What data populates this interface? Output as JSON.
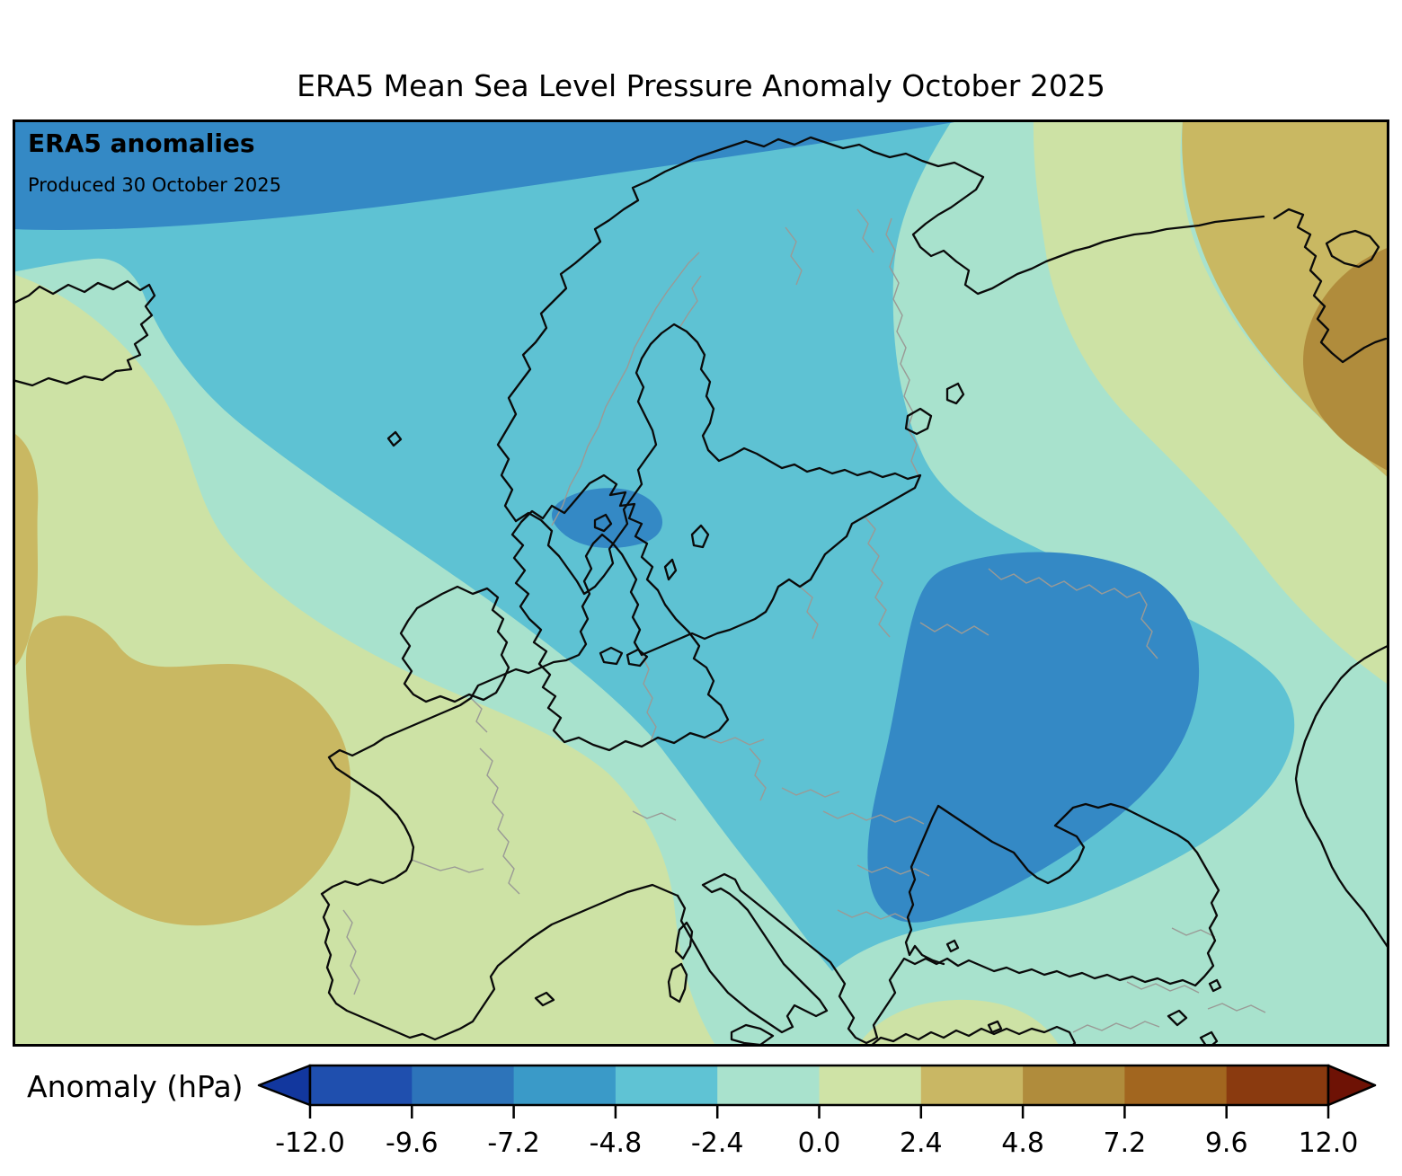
{
  "title": "ERA5 Mean Sea Level Pressure Anomaly October 2025",
  "map": {
    "heading": "ERA5 anomalies",
    "produced_label": "Produced 30 October 2025",
    "colors": {
      "level_dark_blue": "#3489c5",
      "level_teal": "#5ec2d3",
      "level_mint": "#a8e2cd",
      "level_yellow_green": "#cde2a5",
      "level_khaki": "#c9b862",
      "level_tan": "#b08c3c",
      "coastline": "#0a0a0a",
      "border": "#9a9a96",
      "frame": "#000000"
    }
  },
  "colorbar": {
    "label": "Anomaly (hPa)",
    "ticks": [
      "-12.0",
      "-9.6",
      "-7.2",
      "-4.8",
      "-2.4",
      "0.0",
      "2.4",
      "4.8",
      "7.2",
      "9.6",
      "12.0"
    ],
    "segments": [
      "#1f4fae",
      "#2d74ba",
      "#3a9ac8",
      "#5fc3d4",
      "#a9e2cd",
      "#cfe3a6",
      "#c9b764",
      "#b08c3c",
      "#a2661f",
      "#8a3a0f"
    ],
    "left_arrow": "#12379e",
    "right_arrow": "#6e1205"
  },
  "chart_data": {
    "type": "heatmap",
    "subtype": "filled-contour-map",
    "title": "ERA5 Mean Sea Level Pressure Anomaly October 2025",
    "variable": "Mean sea level pressure anomaly",
    "units": "hPa",
    "region": "Europe and North Atlantic",
    "source_label": "ERA5 anomalies",
    "produced": "Produced 30 October 2025",
    "contour_levels": [
      -12.0,
      -9.6,
      -7.2,
      -4.8,
      -2.4,
      0.0,
      2.4,
      4.8,
      7.2,
      9.6,
      12.0
    ],
    "colorbar_extends": "both",
    "legend_position": "bottom",
    "features": [
      {
        "name": "negative anomaly band",
        "value_range": [
          -7.2,
          -4.8
        ],
        "location": "far north-west / top edge of map (Arctic north of Scandinavia)"
      },
      {
        "name": "broad negative region",
        "value_range": [
          -4.8,
          -2.4
        ],
        "location": "Norwegian Sea, Scandinavia, Baltic, central Europe to Black Sea"
      },
      {
        "name": "closed negative center",
        "value_range": [
          -7.2,
          -4.8
        ],
        "location": "Ukraine / south-western Russia, extending to Sea of Azov"
      },
      {
        "name": "small negative center",
        "value_range": [
          -7.2,
          -4.8
        ],
        "location": "Skagerrak / northern Denmark"
      },
      {
        "name": "near-zero band",
        "value_range": [
          -2.4,
          0.0
        ],
        "location": "east of Iceland, British Isles north, Balkans, Turkey, Caucasus"
      },
      {
        "name": "weak positive region",
        "value_range": [
          0.0,
          2.4
        ],
        "location": "Iceland south-west, France, Iberia, western Mediterranean"
      },
      {
        "name": "positive center",
        "value_range": [
          2.4,
          4.8
        ],
        "location": "North Atlantic west of Bay of Biscay"
      },
      {
        "name": "strong positive center",
        "value_range": [
          4.8,
          7.2
        ],
        "location": "far north-east near Novaya Zemlya (map corner)"
      }
    ]
  }
}
